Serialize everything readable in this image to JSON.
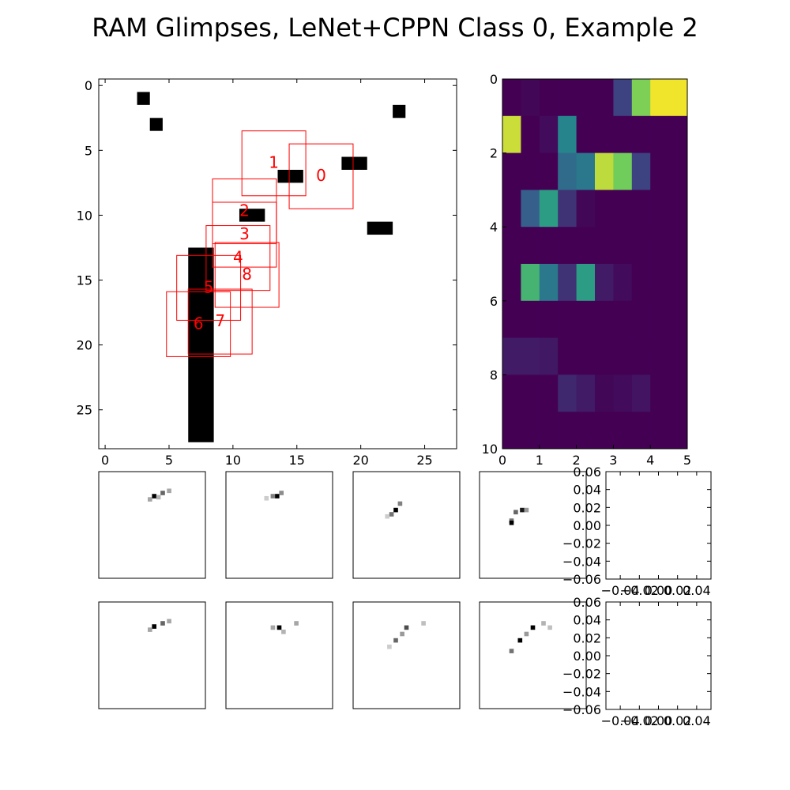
{
  "title": "RAM Glimpses, LeNet+CPPN Class 0, Example 2",
  "chart_data": [
    {
      "type": "heatmap",
      "panel": "main-image",
      "colormap": "binary",
      "xlim": [
        -0.5,
        27.5
      ],
      "ylim": [
        28,
        -0.5
      ],
      "x_ticks": [
        0,
        5,
        10,
        15,
        20,
        25
      ],
      "y_ticks": [
        0,
        5,
        10,
        15,
        20,
        25
      ],
      "black_rects": [
        {
          "x": 2.5,
          "y": 0.5,
          "w": 1,
          "h": 1
        },
        {
          "x": 3.5,
          "y": 2.5,
          "w": 1,
          "h": 1
        },
        {
          "x": 22.5,
          "y": 1.5,
          "w": 1,
          "h": 1
        },
        {
          "x": 18.5,
          "y": 5.5,
          "w": 2,
          "h": 1
        },
        {
          "x": 13.5,
          "y": 6.5,
          "w": 2,
          "h": 1
        },
        {
          "x": 10.5,
          "y": 9.5,
          "w": 2,
          "h": 1
        },
        {
          "x": 20.5,
          "y": 10.5,
          "w": 2,
          "h": 1
        },
        {
          "x": 6.5,
          "y": 12.5,
          "w": 2,
          "h": 15
        }
      ],
      "glimpses": [
        {
          "label": "0",
          "x": 14.4,
          "y": 4.5,
          "size": 5
        },
        {
          "label": "1",
          "x": 10.7,
          "y": 3.5,
          "size": 5
        },
        {
          "label": "2",
          "x": 8.4,
          "y": 7.2,
          "size": 5
        },
        {
          "label": "3",
          "x": 8.4,
          "y": 9.0,
          "size": 5
        },
        {
          "label": "4",
          "x": 7.9,
          "y": 10.8,
          "size": 5
        },
        {
          "label": "5",
          "x": 5.6,
          "y": 13.1,
          "size": 5
        },
        {
          "label": "6",
          "x": 4.8,
          "y": 15.9,
          "size": 5
        },
        {
          "label": "7",
          "x": 6.5,
          "y": 15.7,
          "size": 5
        },
        {
          "label": "8",
          "x": 8.6,
          "y": 12.1,
          "size": 5
        }
      ],
      "glimpse_color": "#ff0000"
    },
    {
      "type": "heatmap",
      "panel": "class-probabilities",
      "colormap": "viridis",
      "xlim": [
        0,
        5
      ],
      "ylim": [
        10,
        0
      ],
      "x_ticks": [
        0,
        1,
        2,
        3,
        4,
        5
      ],
      "y_ticks": [
        0,
        2,
        4,
        6,
        8,
        10
      ],
      "values": [
        [
          0.0,
          0.02,
          0.0,
          0.0,
          0.0,
          0.0,
          0.2,
          0.8,
          0.98,
          0.98
        ],
        [
          0.92,
          0.0,
          0.03,
          0.45,
          0.0,
          0.0,
          0.0,
          0.0,
          0.0,
          0.0
        ],
        [
          0.0,
          0.0,
          0.0,
          0.35,
          0.4,
          0.9,
          0.78,
          0.2,
          0.0,
          0.0
        ],
        [
          0.0,
          0.3,
          0.55,
          0.15,
          0.02,
          0.0,
          0.0,
          0.0,
          0.0,
          0.0
        ],
        [
          0.0,
          0.0,
          0.0,
          0.0,
          0.0,
          0.0,
          0.0,
          0.0,
          0.0,
          0.0
        ],
        [
          0.0,
          0.65,
          0.4,
          0.15,
          0.55,
          0.08,
          0.03,
          0.0,
          0.0,
          0.0
        ],
        [
          0.0,
          0.0,
          0.0,
          0.0,
          0.0,
          0.0,
          0.0,
          0.0,
          0.0,
          0.0
        ],
        [
          0.08,
          0.08,
          0.07,
          0.0,
          0.0,
          0.0,
          0.0,
          0.0,
          0.0,
          0.0
        ],
        [
          0.0,
          0.0,
          0.0,
          0.12,
          0.08,
          0.02,
          0.03,
          0.06,
          0.0,
          0.0
        ],
        [
          0.0,
          0.0,
          0.0,
          0.0,
          0.0,
          0.0,
          0.0,
          0.0,
          0.0,
          0.0
        ]
      ]
    },
    {
      "type": "heatmap",
      "panel": "glimpse-thumbnails",
      "colormap": "binary",
      "rows": [
        {
          "thumbs": [
            [
              {
                "x": 0.52,
                "y": 0.23,
                "v": 1.0
              },
              {
                "x": 0.6,
                "y": 0.2,
                "v": 0.6
              },
              {
                "x": 0.48,
                "y": 0.26,
                "v": 0.35
              },
              {
                "x": 0.66,
                "y": 0.18,
                "v": 0.35
              },
              {
                "x": 0.56,
                "y": 0.24,
                "v": 0.3
              }
            ],
            [
              {
                "x": 0.48,
                "y": 0.23,
                "v": 1.0
              },
              {
                "x": 0.44,
                "y": 0.23,
                "v": 0.5
              },
              {
                "x": 0.52,
                "y": 0.2,
                "v": 0.45
              },
              {
                "x": 0.38,
                "y": 0.25,
                "v": 0.2
              }
            ],
            [
              {
                "x": 0.4,
                "y": 0.36,
                "v": 1.0
              },
              {
                "x": 0.36,
                "y": 0.4,
                "v": 0.55
              },
              {
                "x": 0.44,
                "y": 0.3,
                "v": 0.5
              },
              {
                "x": 0.32,
                "y": 0.42,
                "v": 0.2
              }
            ],
            [
              {
                "x": 0.4,
                "y": 0.36,
                "v": 0.9
              },
              {
                "x": 0.34,
                "y": 0.38,
                "v": 0.6
              },
              {
                "x": 0.3,
                "y": 0.46,
                "v": 0.55
              },
              {
                "x": 0.3,
                "y": 0.48,
                "v": 1.0
              },
              {
                "x": 0.44,
                "y": 0.36,
                "v": 0.4
              }
            ]
          ]
        },
        {
          "thumbs": [
            [
              {
                "x": 0.52,
                "y": 0.23,
                "v": 1.0
              },
              {
                "x": 0.6,
                "y": 0.2,
                "v": 0.6
              },
              {
                "x": 0.48,
                "y": 0.26,
                "v": 0.35
              },
              {
                "x": 0.66,
                "y": 0.18,
                "v": 0.35
              }
            ],
            [
              {
                "x": 0.5,
                "y": 0.24,
                "v": 1.0
              },
              {
                "x": 0.44,
                "y": 0.24,
                "v": 0.35
              },
              {
                "x": 0.66,
                "y": 0.2,
                "v": 0.35
              },
              {
                "x": 0.54,
                "y": 0.28,
                "v": 0.3
              }
            ],
            [
              {
                "x": 0.5,
                "y": 0.24,
                "v": 0.7
              },
              {
                "x": 0.4,
                "y": 0.36,
                "v": 0.6
              },
              {
                "x": 0.46,
                "y": 0.3,
                "v": 0.4
              },
              {
                "x": 0.66,
                "y": 0.2,
                "v": 0.25
              },
              {
                "x": 0.34,
                "y": 0.42,
                "v": 0.2
              }
            ],
            [
              {
                "x": 0.5,
                "y": 0.24,
                "v": 1.0
              },
              {
                "x": 0.38,
                "y": 0.36,
                "v": 1.0
              },
              {
                "x": 0.44,
                "y": 0.3,
                "v": 0.4
              },
              {
                "x": 0.3,
                "y": 0.46,
                "v": 0.55
              },
              {
                "x": 0.6,
                "y": 0.2,
                "v": 0.3
              },
              {
                "x": 0.66,
                "y": 0.24,
                "v": 0.25
              }
            ]
          ]
        }
      ]
    },
    {
      "type": "line",
      "panel": "empty-axes",
      "count": 2,
      "x_tick_labels": [
        "-0.04",
        "-0.02",
        "0.00",
        "0.02",
        "0.04"
      ],
      "y_tick_labels": [
        "0.06",
        "0.04",
        "0.02",
        "0.00",
        "-0.02",
        "-0.04",
        "-0.06"
      ],
      "xlim": [
        -0.055,
        0.055
      ],
      "ylim": [
        -0.06,
        0.06
      ]
    }
  ]
}
